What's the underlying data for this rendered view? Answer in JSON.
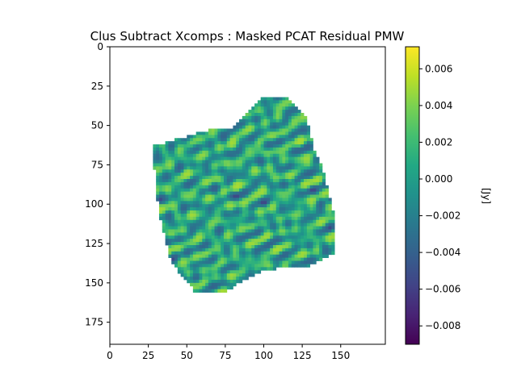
{
  "chart_data": {
    "type": "heatmap",
    "title": "Clus Subtract Xcomps : Masked PCAT Residual PMW",
    "x_range": [
      0,
      179
    ],
    "y_range": [
      0,
      189
    ],
    "y_inverted": true,
    "x_ticks": [
      "0",
      "25",
      "50",
      "75",
      "100",
      "125",
      "150"
    ],
    "y_ticks": [
      "0",
      "25",
      "50",
      "75",
      "100",
      "125",
      "150",
      "175"
    ],
    "colorbar": {
      "label": "[Jy]",
      "colormap": "viridis",
      "range": [
        -0.009,
        0.0072
      ],
      "ticks": [
        "0.006",
        "0.004",
        "0.002",
        "0.000",
        "−0.002",
        "−0.004",
        "−0.006",
        "−0.008"
      ],
      "tick_values": [
        0.006,
        0.004,
        0.002,
        0.0,
        -0.002,
        -0.004,
        -0.006,
        -0.008
      ]
    },
    "mask_outline_xy": [
      [
        28,
        63
      ],
      [
        67,
        52
      ],
      [
        80,
        51
      ],
      [
        92,
        38
      ],
      [
        100,
        32
      ],
      [
        112,
        31
      ],
      [
        120,
        36
      ],
      [
        128,
        46
      ],
      [
        133,
        65
      ],
      [
        138,
        75
      ],
      [
        142,
        92
      ],
      [
        146,
        108
      ],
      [
        147,
        131
      ],
      [
        130,
        139
      ],
      [
        115,
        140
      ],
      [
        100,
        142
      ],
      [
        87,
        148
      ],
      [
        75,
        156
      ],
      [
        55,
        155
      ],
      [
        40,
        137
      ],
      [
        33,
        110
      ],
      [
        30,
        92
      ]
    ],
    "residual_typical_range": [
      -0.004,
      0.005
    ]
  }
}
